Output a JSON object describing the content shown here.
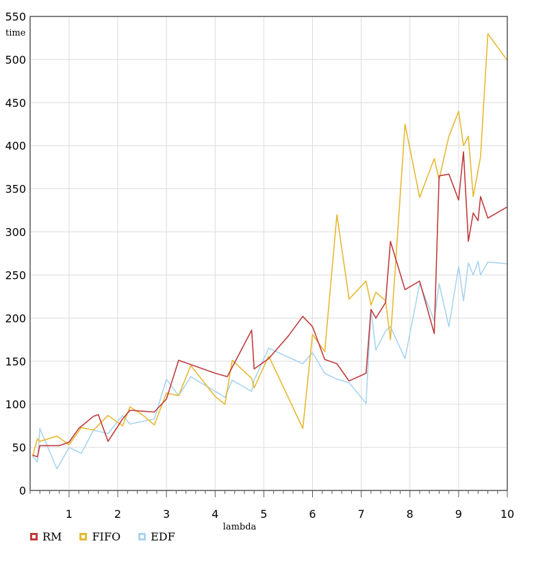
{
  "chart_data": {
    "type": "line",
    "title": "",
    "xlabel": "lambda",
    "ylabel": "time",
    "xlim": [
      0.2,
      10
    ],
    "ylim": [
      0,
      550
    ],
    "xticks": [
      1,
      2,
      3,
      4,
      5,
      6,
      7,
      8,
      9,
      10
    ],
    "yticks": [
      0,
      50,
      100,
      150,
      200,
      250,
      300,
      350,
      400,
      450,
      500,
      550
    ],
    "grid": true,
    "legend_position": "bottom-left",
    "series": [
      {
        "name": "RM",
        "color": "#c0393b",
        "points": [
          [
            0.25,
            41
          ],
          [
            0.35,
            39
          ],
          [
            0.4,
            52
          ],
          [
            0.6,
            52
          ],
          [
            0.8,
            52
          ],
          [
            1.0,
            56
          ],
          [
            1.2,
            72
          ],
          [
            1.5,
            86
          ],
          [
            1.6,
            88
          ],
          [
            1.8,
            57
          ],
          [
            2.1,
            83
          ],
          [
            2.25,
            93
          ],
          [
            2.5,
            92
          ],
          [
            2.75,
            91
          ],
          [
            3.0,
            106
          ],
          [
            3.25,
            151
          ],
          [
            3.5,
            146
          ],
          [
            4.0,
            136
          ],
          [
            4.25,
            132
          ],
          [
            4.75,
            186
          ],
          [
            4.8,
            141
          ],
          [
            5.1,
            153
          ],
          [
            5.5,
            179
          ],
          [
            5.8,
            202
          ],
          [
            6.0,
            190
          ],
          [
            6.25,
            152
          ],
          [
            6.5,
            147
          ],
          [
            6.75,
            127
          ],
          [
            7.1,
            136
          ],
          [
            7.2,
            210
          ],
          [
            7.3,
            200
          ],
          [
            7.5,
            218
          ],
          [
            7.6,
            289
          ],
          [
            7.9,
            233
          ],
          [
            8.2,
            243
          ],
          [
            8.5,
            182
          ],
          [
            8.6,
            365
          ],
          [
            8.8,
            367
          ],
          [
            9.0,
            337
          ],
          [
            9.1,
            393
          ],
          [
            9.2,
            289
          ],
          [
            9.3,
            322
          ],
          [
            9.4,
            313
          ],
          [
            9.45,
            341
          ],
          [
            9.6,
            316
          ],
          [
            10.0,
            329
          ]
        ]
      },
      {
        "name": "FIFO",
        "color": "#e6b830",
        "points": [
          [
            0.25,
            40
          ],
          [
            0.35,
            60
          ],
          [
            0.4,
            57
          ],
          [
            0.75,
            63
          ],
          [
            1.0,
            53
          ],
          [
            1.25,
            73
          ],
          [
            1.5,
            70
          ],
          [
            1.8,
            87
          ],
          [
            2.1,
            75
          ],
          [
            2.25,
            97
          ],
          [
            2.5,
            88
          ],
          [
            2.75,
            76
          ],
          [
            3.0,
            113
          ],
          [
            3.25,
            110
          ],
          [
            3.5,
            145
          ],
          [
            4.0,
            109
          ],
          [
            4.2,
            100
          ],
          [
            4.35,
            151
          ],
          [
            4.75,
            130
          ],
          [
            4.8,
            119
          ],
          [
            5.1,
            156
          ],
          [
            5.8,
            72
          ],
          [
            6.0,
            181
          ],
          [
            6.25,
            161
          ],
          [
            6.5,
            320
          ],
          [
            6.75,
            222
          ],
          [
            7.1,
            243
          ],
          [
            7.2,
            215
          ],
          [
            7.3,
            230
          ],
          [
            7.5,
            220
          ],
          [
            7.6,
            175
          ],
          [
            7.9,
            425
          ],
          [
            8.2,
            340
          ],
          [
            8.5,
            385
          ],
          [
            8.6,
            361
          ],
          [
            8.8,
            411
          ],
          [
            9.0,
            440
          ],
          [
            9.1,
            400
          ],
          [
            9.2,
            411
          ],
          [
            9.3,
            341
          ],
          [
            9.45,
            387
          ],
          [
            9.6,
            530
          ],
          [
            10.0,
            499
          ]
        ]
      },
      {
        "name": "EDF",
        "color": "#a8d4f0",
        "points": [
          [
            0.25,
            40
          ],
          [
            0.35,
            33
          ],
          [
            0.4,
            72
          ],
          [
            0.75,
            25
          ],
          [
            1.0,
            50
          ],
          [
            1.25,
            43
          ],
          [
            1.5,
            70
          ],
          [
            1.8,
            66
          ],
          [
            2.1,
            87
          ],
          [
            2.25,
            77
          ],
          [
            2.75,
            83
          ],
          [
            3.0,
            129
          ],
          [
            3.25,
            110
          ],
          [
            3.5,
            132
          ],
          [
            4.0,
            115
          ],
          [
            4.2,
            108
          ],
          [
            4.35,
            128
          ],
          [
            4.75,
            115
          ],
          [
            4.8,
            128
          ],
          [
            5.1,
            165
          ],
          [
            5.8,
            147
          ],
          [
            6.0,
            160
          ],
          [
            6.25,
            136
          ],
          [
            6.5,
            129
          ],
          [
            6.75,
            125
          ],
          [
            7.1,
            101
          ],
          [
            7.2,
            210
          ],
          [
            7.3,
            163
          ],
          [
            7.5,
            185
          ],
          [
            7.6,
            190
          ],
          [
            7.9,
            153
          ],
          [
            8.2,
            240
          ],
          [
            8.5,
            197
          ],
          [
            8.6,
            240
          ],
          [
            8.8,
            190
          ],
          [
            9.0,
            260
          ],
          [
            9.1,
            220
          ],
          [
            9.2,
            264
          ],
          [
            9.3,
            250
          ],
          [
            9.4,
            266
          ],
          [
            9.45,
            250
          ],
          [
            9.6,
            265
          ],
          [
            10.0,
            263
          ]
        ]
      }
    ]
  }
}
